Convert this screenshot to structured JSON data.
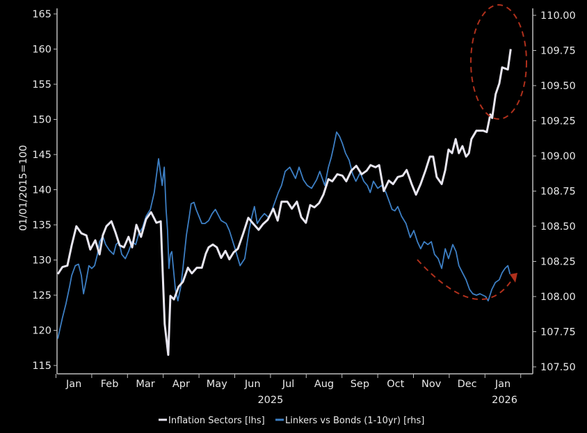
{
  "chart_data": {
    "type": "line",
    "title": "",
    "ylabel": "01/01/2015=100",
    "xlabel": "",
    "x_units": "months since 1 Jan 2025",
    "xlim": [
      0,
      13.3
    ],
    "ylim_left": [
      115,
      165
    ],
    "ylim_right": [
      107.5,
      110.0
    ],
    "yticks_left": [
      "115",
      "120",
      "125",
      "130",
      "135",
      "140",
      "145",
      "150",
      "155",
      "160",
      "165"
    ],
    "yticks_right": [
      "107.50",
      "107.75",
      "108.00",
      "108.25",
      "108.50",
      "108.75",
      "109.00",
      "109.25",
      "109.50",
      "109.75",
      "110.00"
    ],
    "month_labels": [
      "Jan",
      "Feb",
      "Mar",
      "Apr",
      "May",
      "Jun",
      "Jul",
      "Aug",
      "Sep",
      "Oct",
      "Nov",
      "Dec",
      "Jan"
    ],
    "year_labels": [
      {
        "label": "2025",
        "month": 6.0
      },
      {
        "label": "2026",
        "month": 12.55
      }
    ],
    "grid": false,
    "legend_position": "bottom",
    "series": [
      {
        "name": "Inflation Sectors [lhs]",
        "axis": "left",
        "color": "#e8e6f0",
        "x": [
          0.05,
          0.18,
          0.32,
          0.44,
          0.57,
          0.71,
          0.85,
          0.96,
          1.1,
          1.22,
          1.31,
          1.41,
          1.55,
          1.66,
          1.78,
          1.9,
          2.03,
          2.13,
          2.25,
          2.38,
          2.52,
          2.66,
          2.81,
          2.93,
          3.04,
          3.14,
          3.2,
          3.3,
          3.43,
          3.55,
          3.69,
          3.8,
          3.94,
          4.08,
          4.19,
          4.27,
          4.39,
          4.5,
          4.62,
          4.74,
          4.85,
          4.97,
          5.09,
          5.24,
          5.38,
          5.53,
          5.67,
          5.79,
          5.92,
          6.08,
          6.2,
          6.31,
          6.47,
          6.6,
          6.74,
          6.86,
          6.99,
          7.11,
          7.23,
          7.36,
          7.48,
          7.62,
          7.73,
          7.87,
          8.01,
          8.12,
          8.26,
          8.4,
          8.55,
          8.69,
          8.8,
          8.94,
          9.04,
          9.17,
          9.31,
          9.43,
          9.56,
          9.7,
          9.81,
          9.95,
          10.07,
          10.2,
          10.34,
          10.46,
          10.55,
          10.65,
          10.79,
          10.89,
          10.98,
          11.08,
          11.18,
          11.27,
          11.37,
          11.47,
          11.55,
          11.62,
          11.76,
          11.95,
          12.05,
          12.15,
          12.2,
          12.3,
          12.4,
          12.48,
          12.64,
          12.72
        ],
        "values": [
          128.0,
          129.0,
          129.2,
          132.1,
          134.8,
          133.8,
          133.5,
          131.5,
          132.8,
          130.8,
          133.5,
          134.8,
          135.5,
          134.0,
          132.1,
          131.8,
          133.3,
          131.8,
          135.0,
          133.3,
          135.8,
          136.8,
          135.3,
          135.5,
          120.9,
          116.5,
          124.9,
          124.4,
          126.2,
          126.9,
          128.9,
          128.1,
          128.9,
          128.9,
          130.9,
          131.8,
          132.2,
          131.8,
          130.3,
          131.3,
          130.1,
          131.1,
          131.6,
          133.8,
          136.0,
          135.1,
          134.3,
          135.1,
          135.7,
          137.3,
          135.6,
          138.3,
          138.3,
          137.3,
          138.3,
          136.1,
          135.3,
          137.8,
          137.5,
          138.1,
          139.3,
          141.5,
          141.2,
          142.2,
          142.0,
          141.2,
          142.7,
          143.4,
          142.2,
          142.7,
          143.5,
          143.2,
          143.5,
          139.8,
          141.3,
          140.8,
          141.8,
          142.0,
          142.8,
          140.8,
          139.3,
          140.8,
          142.8,
          144.7,
          144.7,
          141.8,
          140.8,
          142.8,
          145.7,
          145.2,
          147.2,
          145.2,
          146.2,
          144.7,
          145.2,
          147.2,
          148.4,
          148.4,
          148.2,
          150.7,
          150.2,
          153.6,
          155.1,
          157.4,
          157.1,
          160.0
        ]
      },
      {
        "name": "Linkers vs Bonds (1-10yr) [rhs]",
        "axis": "right",
        "color": "#3d7fc4",
        "x": [
          0.05,
          0.18,
          0.28,
          0.38,
          0.44,
          0.54,
          0.63,
          0.71,
          0.77,
          0.85,
          0.92,
          1.0,
          1.08,
          1.16,
          1.22,
          1.31,
          1.39,
          1.49,
          1.61,
          1.68,
          1.76,
          1.84,
          1.94,
          2.03,
          2.13,
          2.23,
          2.32,
          2.42,
          2.52,
          2.64,
          2.75,
          2.87,
          2.97,
          3.03,
          3.08,
          3.12,
          3.16,
          3.2,
          3.24,
          3.34,
          3.41,
          3.49,
          3.55,
          3.65,
          3.73,
          3.78,
          3.86,
          3.92,
          4.0,
          4.08,
          4.17,
          4.27,
          4.37,
          4.46,
          4.62,
          4.76,
          4.85,
          5.01,
          5.15,
          5.28,
          5.4,
          5.48,
          5.55,
          5.63,
          5.73,
          5.83,
          5.96,
          6.12,
          6.22,
          6.31,
          6.41,
          6.54,
          6.7,
          6.8,
          6.92,
          7.03,
          7.15,
          7.29,
          7.38,
          7.52,
          7.62,
          7.7,
          7.77,
          7.85,
          7.93,
          8.01,
          8.1,
          8.2,
          8.3,
          8.39,
          8.51,
          8.61,
          8.71,
          8.79,
          8.88,
          9.0,
          9.11,
          9.23,
          9.33,
          9.4,
          9.48,
          9.56,
          9.67,
          9.79,
          9.91,
          10.01,
          10.11,
          10.2,
          10.3,
          10.4,
          10.5,
          10.59,
          10.69,
          10.79,
          10.89,
          10.98,
          11.1,
          11.19,
          11.27,
          11.37,
          11.47,
          11.57,
          11.66,
          11.76,
          11.86,
          12.02,
          12.09,
          12.19,
          12.29,
          12.4,
          12.48,
          12.56,
          12.64,
          12.7
        ],
        "values": [
          107.7,
          107.85,
          107.95,
          108.07,
          108.15,
          108.22,
          108.23,
          108.15,
          108.02,
          108.12,
          108.22,
          108.2,
          108.22,
          108.3,
          108.39,
          108.43,
          108.37,
          108.33,
          108.3,
          108.37,
          108.39,
          108.3,
          108.27,
          108.32,
          108.39,
          108.37,
          108.45,
          108.49,
          108.57,
          108.62,
          108.74,
          108.98,
          108.79,
          108.92,
          108.62,
          108.47,
          108.2,
          108.3,
          108.32,
          108.05,
          107.97,
          108.07,
          108.2,
          108.44,
          108.57,
          108.66,
          108.67,
          108.62,
          108.57,
          108.52,
          108.52,
          108.54,
          108.59,
          108.62,
          108.54,
          108.52,
          108.47,
          108.34,
          108.22,
          108.27,
          108.47,
          108.57,
          108.64,
          108.52,
          108.56,
          108.59,
          108.56,
          108.67,
          108.74,
          108.79,
          108.89,
          108.92,
          108.84,
          108.92,
          108.83,
          108.79,
          108.77,
          108.83,
          108.89,
          108.79,
          108.92,
          108.99,
          109.07,
          109.17,
          109.14,
          109.09,
          109.02,
          108.97,
          108.87,
          108.82,
          108.88,
          108.82,
          108.79,
          108.74,
          108.82,
          108.77,
          108.79,
          108.74,
          108.67,
          108.62,
          108.61,
          108.64,
          108.57,
          108.52,
          108.42,
          108.47,
          108.39,
          108.34,
          108.39,
          108.37,
          108.39,
          108.3,
          108.27,
          108.2,
          108.34,
          108.27,
          108.37,
          108.32,
          108.22,
          108.17,
          108.12,
          108.05,
          108.02,
          108.01,
          108.02,
          108.0,
          107.97,
          108.05,
          108.1,
          108.12,
          108.17,
          108.2,
          108.22,
          108.16
        ]
      }
    ],
    "annotation_color": "#b0301c"
  }
}
